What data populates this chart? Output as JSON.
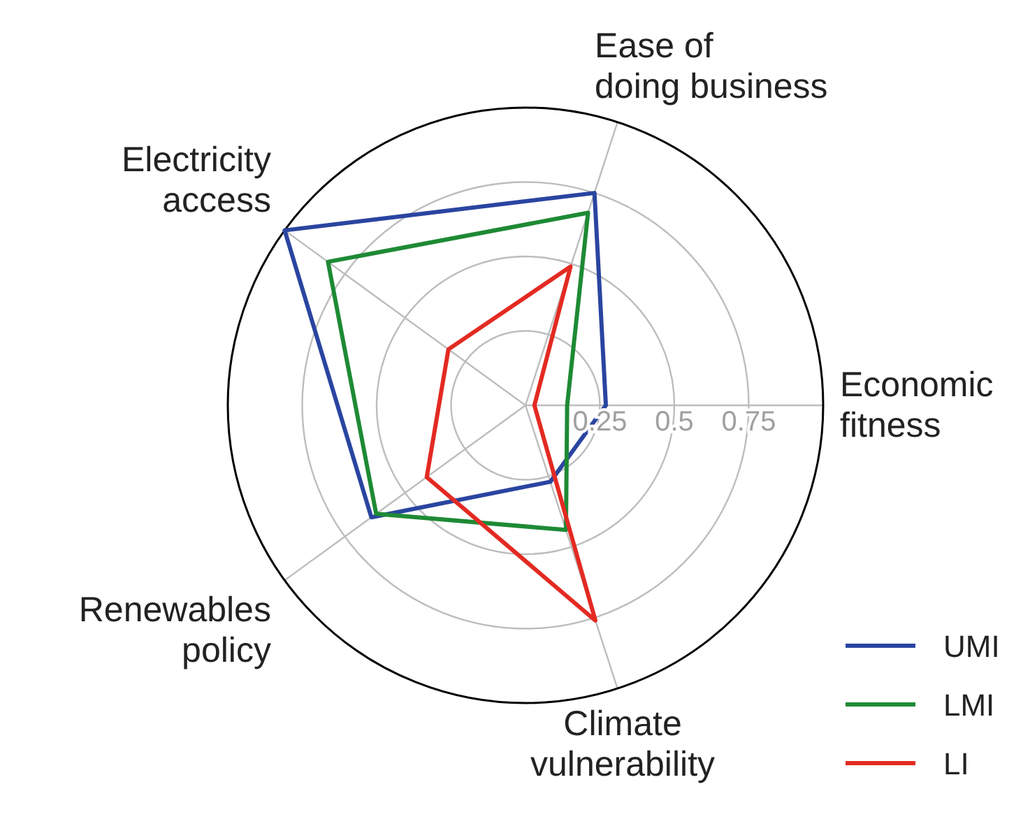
{
  "chart_data": {
    "type": "radar",
    "categories": [
      "Ease of\ndoing business",
      "Economic\nfitness",
      "Climate\nvulnerability",
      "Renewables\npolicy",
      "Electricity\naccess"
    ],
    "ylim": [
      0,
      1
    ],
    "yticks": [
      0.25,
      0.5,
      0.75
    ],
    "grid": true,
    "legend": "bottom right",
    "series": [
      {
        "name": "UMI",
        "color": "#2a45a0",
        "values": [
          0.75,
          0.27,
          0.27,
          0.64,
          1.0
        ]
      },
      {
        "name": "LMI",
        "color": "#1e8a35",
        "values": [
          0.68,
          0.14,
          0.44,
          0.62,
          0.82
        ]
      },
      {
        "name": "LI",
        "color": "#e32a22",
        "values": [
          0.49,
          0.03,
          0.76,
          0.41,
          0.32
        ]
      }
    ]
  }
}
